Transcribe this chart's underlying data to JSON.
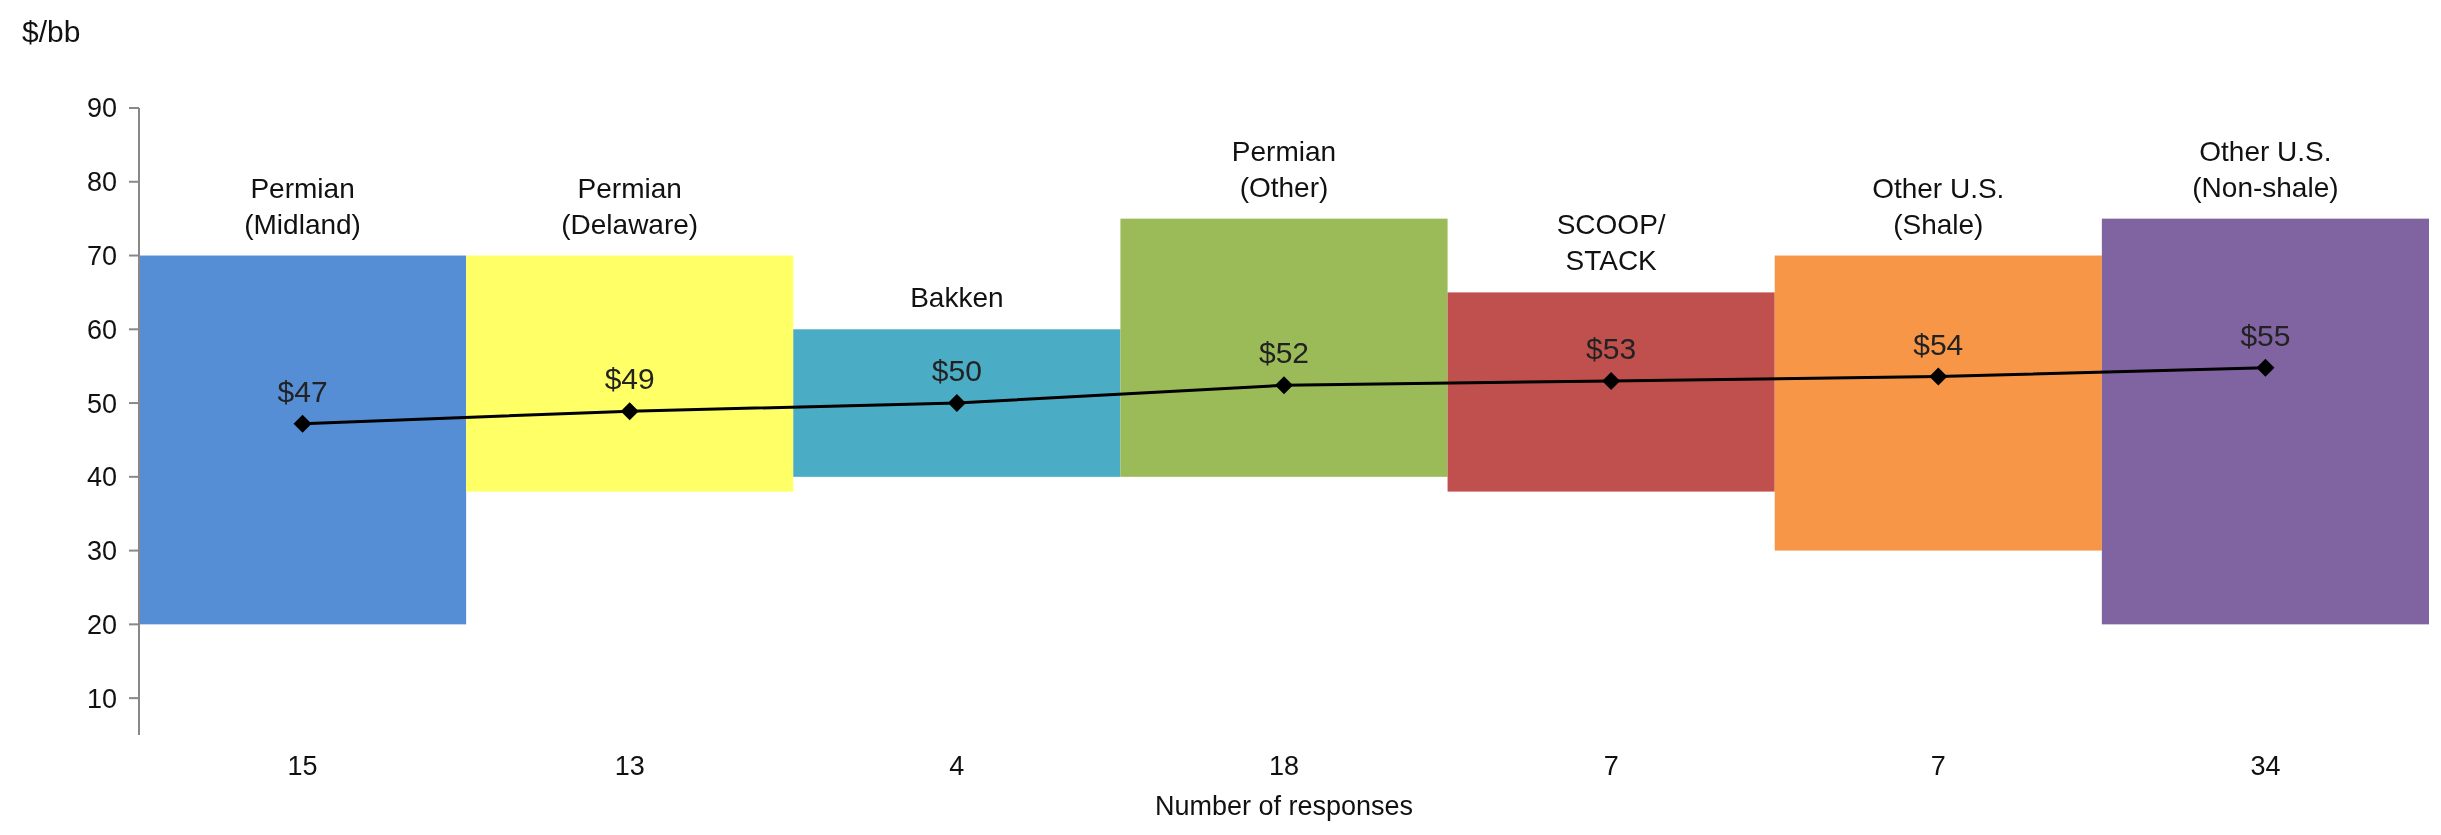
{
  "chart_data": {
    "type": "bar",
    "xlabel": "Number of responses",
    "ylabel": "$/bb",
    "categories": [
      "15",
      "13",
      "4",
      "18",
      "7",
      "7",
      "34"
    ],
    "series": [
      {
        "colors": [
          "#558ed5",
          "#ffff66",
          "#4bacc6",
          "#9bbb59",
          "#c0504d",
          "#f79646",
          "#8064a2"
        ],
        "base": [
          20,
          38,
          40,
          40,
          38,
          30,
          20
        ],
        "values": [
          50,
          32,
          20,
          35,
          27,
          40,
          55
        ]
      },
      {
        "type": "line",
        "color": "#000000",
        "values": [
          47.2,
          48.9,
          50,
          52.4,
          53,
          53.6,
          54.8
        ],
        "value_labels": [
          "$47",
          "$49",
          "$50",
          "$52",
          "$53",
          "$54",
          "$55"
        ]
      }
    ],
    "annotations": [
      "Permian\n(Midland)",
      "Permian\n(Delaware)",
      "Bakken",
      "Permian\n(Other)",
      "SCOOP/\nSTACK",
      "Other U.S.\n(Shale)",
      "Other U.S.\n(Non-shale)"
    ],
    "ylim": [
      5,
      90
    ],
    "yticks": [
      10,
      20,
      30,
      40,
      50,
      60,
      70,
      80,
      90
    ],
    "marker": "diamond",
    "line_style": "solid",
    "grid": false
  }
}
